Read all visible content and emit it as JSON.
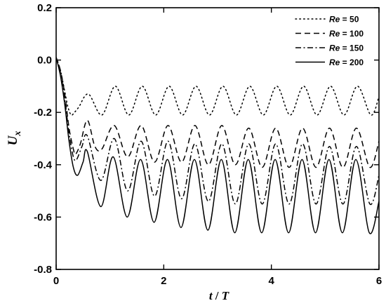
{
  "chart_data": {
    "type": "line",
    "xlabel": {
      "main": "t",
      "sep": " / ",
      "den": "T"
    },
    "ylabel": {
      "main": "U",
      "sub": "x"
    },
    "xlim": [
      0,
      6
    ],
    "ylim": [
      -0.8,
      0.2
    ],
    "x_ticks": [
      0,
      2,
      4,
      6
    ],
    "x_tick_labels": [
      "0",
      "2",
      "4",
      "6"
    ],
    "y_ticks": [
      0.2,
      0.0,
      -0.2,
      -0.4,
      -0.6,
      -0.8
    ],
    "y_tick_labels": [
      "0.2",
      "0.0",
      "-0.2",
      "-0.4",
      "-0.6",
      "-0.8"
    ],
    "grid": false,
    "legend_position": "top-right",
    "color": "#000000",
    "series": [
      {
        "name": "Re = 50",
        "name_var": "Re",
        "name_val": " = 50",
        "dash": "dotted",
        "x": [
          0,
          0.08,
          0.16,
          0.22,
          0.28,
          0.34,
          0.42,
          0.6,
          0.85,
          1.1,
          1.35,
          1.6,
          1.85,
          2.1,
          2.35,
          2.6,
          2.85,
          3.1,
          3.35,
          3.6,
          3.85,
          4.1,
          4.35,
          4.6,
          4.85,
          5.1,
          5.35,
          5.6,
          5.85,
          6.0
        ],
        "y": [
          0.01,
          -0.04,
          -0.12,
          -0.18,
          -0.21,
          -0.2,
          -0.18,
          -0.13,
          -0.21,
          -0.1,
          -0.21,
          -0.1,
          -0.21,
          -0.1,
          -0.21,
          -0.1,
          -0.21,
          -0.1,
          -0.21,
          -0.1,
          -0.21,
          -0.1,
          -0.21,
          -0.1,
          -0.21,
          -0.1,
          -0.21,
          -0.1,
          -0.21,
          -0.14
        ]
      },
      {
        "name": "Re = 100",
        "name_var": "Re",
        "name_val": " = 100",
        "dash": "dashed",
        "x": [
          0,
          0.08,
          0.16,
          0.24,
          0.32,
          0.36,
          0.45,
          0.58,
          0.72,
          0.85,
          1.08,
          1.33,
          1.58,
          1.83,
          2.08,
          2.33,
          2.58,
          2.83,
          3.08,
          3.33,
          3.58,
          3.83,
          4.08,
          4.33,
          4.58,
          4.83,
          5.08,
          5.33,
          5.58,
          5.83,
          6.0
        ],
        "y": [
          0.01,
          -0.04,
          -0.13,
          -0.26,
          -0.34,
          -0.36,
          -0.32,
          -0.23,
          -0.33,
          -0.34,
          -0.25,
          -0.37,
          -0.25,
          -0.39,
          -0.25,
          -0.39,
          -0.25,
          -0.4,
          -0.25,
          -0.4,
          -0.26,
          -0.41,
          -0.26,
          -0.41,
          -0.26,
          -0.41,
          -0.26,
          -0.41,
          -0.26,
          -0.41,
          -0.31
        ]
      },
      {
        "name": "Re = 150",
        "name_var": "Re",
        "name_val": " = 150",
        "dash": "dashdot",
        "x": [
          0,
          0.08,
          0.16,
          0.24,
          0.32,
          0.38,
          0.48,
          0.58,
          0.83,
          1.08,
          1.33,
          1.58,
          1.83,
          2.08,
          2.33,
          2.58,
          2.83,
          3.08,
          3.33,
          3.58,
          3.83,
          4.08,
          4.33,
          4.58,
          4.83,
          5.08,
          5.33,
          5.58,
          5.83,
          6.0
        ],
        "y": [
          0.01,
          -0.05,
          -0.15,
          -0.28,
          -0.37,
          -0.38,
          -0.33,
          -0.29,
          -0.46,
          -0.3,
          -0.5,
          -0.31,
          -0.52,
          -0.31,
          -0.53,
          -0.32,
          -0.54,
          -0.32,
          -0.55,
          -0.32,
          -0.55,
          -0.32,
          -0.55,
          -0.32,
          -0.55,
          -0.33,
          -0.55,
          -0.33,
          -0.55,
          -0.44
        ]
      },
      {
        "name": "Re = 200",
        "name_var": "Re",
        "name_val": " = 200",
        "dash": "solid",
        "x": [
          0,
          0.08,
          0.16,
          0.24,
          0.32,
          0.4,
          0.5,
          0.58,
          0.83,
          1.06,
          1.32,
          1.57,
          1.82,
          2.07,
          2.32,
          2.57,
          2.82,
          3.07,
          3.32,
          3.57,
          3.82,
          4.07,
          4.32,
          4.57,
          4.82,
          5.07,
          5.32,
          5.57,
          5.82,
          6.0
        ],
        "y": [
          0.01,
          -0.06,
          -0.17,
          -0.31,
          -0.41,
          -0.44,
          -0.39,
          -0.35,
          -0.56,
          -0.37,
          -0.6,
          -0.38,
          -0.62,
          -0.38,
          -0.64,
          -0.38,
          -0.65,
          -0.38,
          -0.66,
          -0.38,
          -0.66,
          -0.38,
          -0.66,
          -0.38,
          -0.66,
          -0.38,
          -0.66,
          -0.38,
          -0.66,
          -0.54
        ]
      }
    ]
  }
}
